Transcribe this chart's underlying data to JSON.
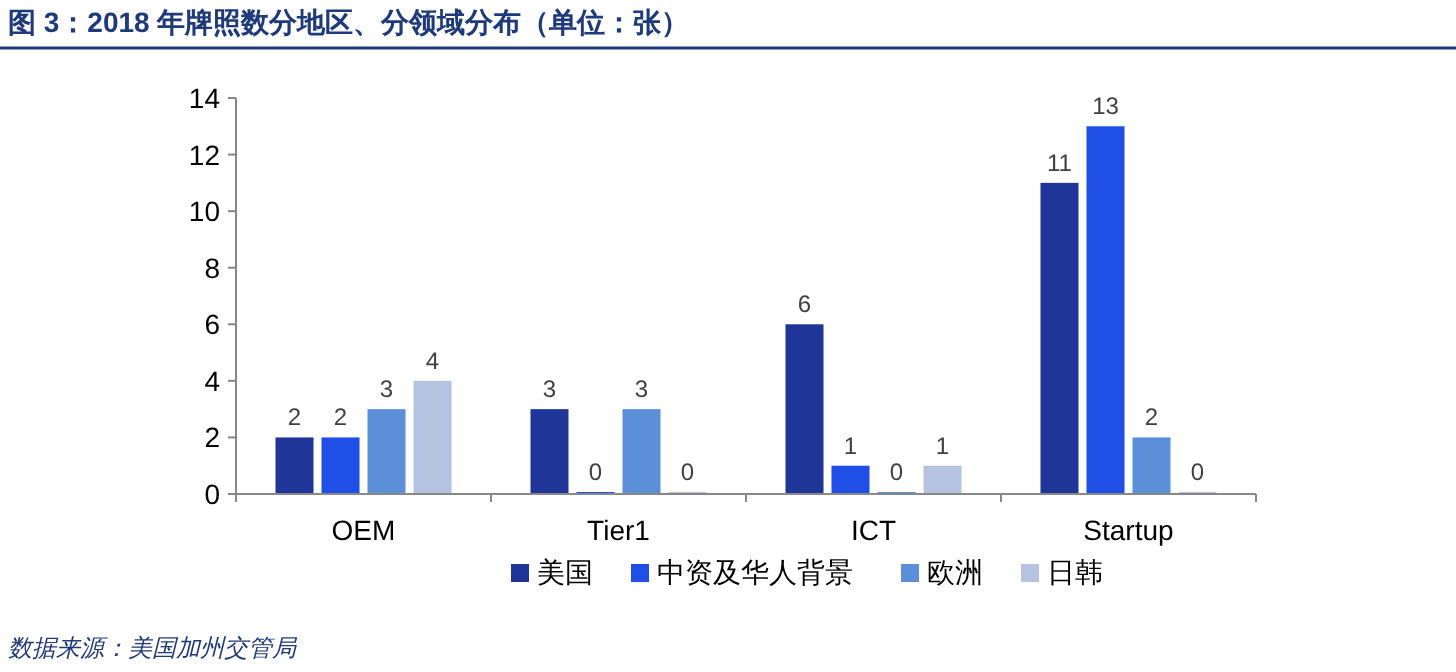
{
  "chart_data": {
    "type": "bar",
    "title": "图 3：2018 年牌照数分地区、分领域分布（单位：张）",
    "categories": [
      "OEM",
      "Tier1",
      "ICT",
      "Startup"
    ],
    "series": [
      {
        "name": "美国",
        "color": "#1f3598",
        "values": [
          2,
          3,
          6,
          11
        ]
      },
      {
        "name": "中资及华人背景",
        "color": "#1f4fe6",
        "values": [
          2,
          0,
          1,
          13
        ]
      },
      {
        "name": "欧洲",
        "color": "#5b8fd8",
        "values": [
          3,
          3,
          0,
          2
        ]
      },
      {
        "name": "日韩",
        "color": "#b4c3e0",
        "values": [
          4,
          0,
          1,
          0
        ]
      }
    ],
    "ylim": [
      0,
      14
    ],
    "yticks": [
      0,
      2,
      4,
      6,
      8,
      10,
      12,
      14
    ],
    "data_labels": true,
    "legend": "bottom",
    "grid": false,
    "annotations": [
      "数据来源：美国加州交管局"
    ]
  }
}
